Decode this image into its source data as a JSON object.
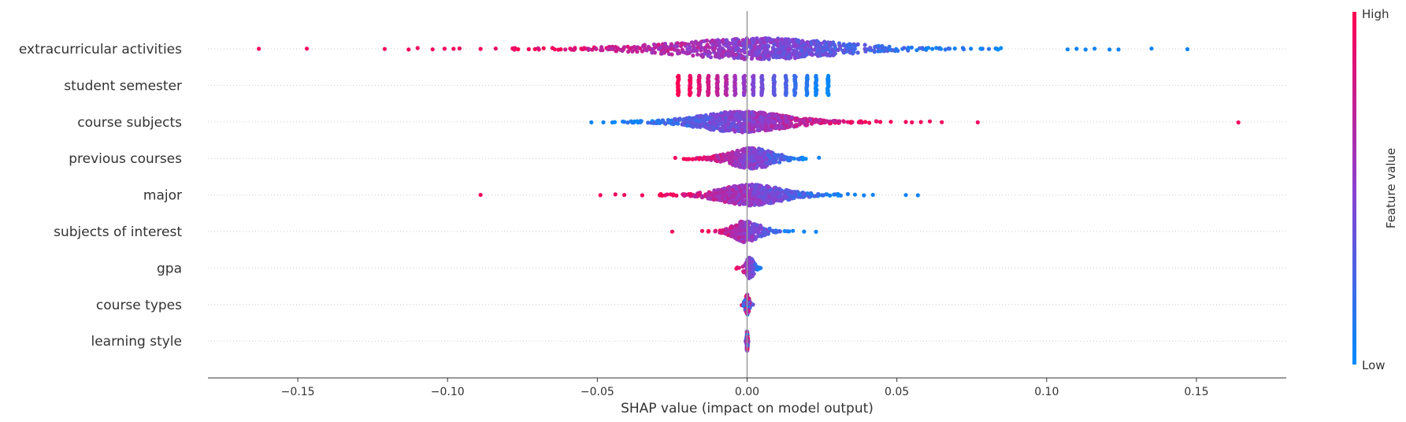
{
  "chart_data": {
    "type": "scatter",
    "subtype": "beeswarm",
    "title": "",
    "xlabel": "SHAP value (impact on model output)",
    "ylabel": "",
    "xlim": [
      -0.18,
      0.18
    ],
    "xticks": [
      -0.15,
      -0.1,
      -0.05,
      0.0,
      0.05,
      0.1,
      0.15
    ],
    "xtick_labels": [
      "−0.15",
      "−0.10",
      "−0.05",
      "0.00",
      "0.05",
      "0.10",
      "0.15"
    ],
    "zero_line": 0.0,
    "row_gridlines": "dotted",
    "colorbar": {
      "title": "Feature value",
      "high_label": "High",
      "low_label": "Low",
      "high_color": "#ff0051",
      "low_color": "#008bfb"
    },
    "features": [
      {
        "name": "extracurricular activities",
        "color_trend": "high-left",
        "outliers": [
          -0.163,
          -0.147,
          -0.121,
          -0.113,
          -0.11,
          -0.105,
          -0.101,
          -0.098,
          -0.096,
          -0.089,
          0.107,
          0.11,
          0.113,
          0.116,
          0.121,
          0.124,
          0.135,
          0.147
        ],
        "core_range": [
          -0.085,
          0.085
        ],
        "density_peak": 0.005
      },
      {
        "name": "student semester",
        "color_trend": "high-left",
        "clusters": [
          -0.023,
          -0.019,
          -0.016,
          -0.013,
          -0.01,
          -0.007,
          -0.004,
          -0.001,
          0.002,
          0.005,
          0.009,
          0.013,
          0.016,
          0.02,
          0.023,
          0.027
        ]
      },
      {
        "name": "course subjects",
        "color_trend": "high-right",
        "outliers": [
          -0.052,
          -0.048,
          -0.045,
          0.048,
          0.053,
          0.055,
          0.058,
          0.061,
          0.065,
          0.077,
          0.164
        ],
        "core_range": [
          -0.045,
          0.045
        ],
        "density_peak": -0.002
      },
      {
        "name": "previous courses",
        "color_trend": "high-left",
        "outliers": [
          -0.024,
          0.024
        ],
        "core_range": [
          -0.022,
          0.023
        ],
        "density_peak": 0.002
      },
      {
        "name": "major",
        "color_trend": "high-left",
        "outliers": [
          -0.089,
          -0.049,
          -0.044,
          -0.041,
          -0.035,
          0.036,
          0.039,
          0.042,
          0.053,
          0.057
        ],
        "core_range": [
          -0.03,
          0.034
        ],
        "density_peak": 0.001
      },
      {
        "name": "subjects of interest",
        "color_trend": "high-left",
        "outliers": [
          -0.025,
          -0.015,
          0.019,
          0.023
        ],
        "core_range": [
          -0.013,
          0.016
        ],
        "density_peak": -0.001
      },
      {
        "name": "gpa",
        "color_trend": "high-left",
        "core_range": [
          -0.004,
          0.005
        ],
        "density_peak": 0.001
      },
      {
        "name": "course types",
        "color_trend": "mixed",
        "core_range": [
          -0.002,
          0.002
        ],
        "density_peak": 0.0
      },
      {
        "name": "learning style",
        "color_trend": "mixed",
        "core_range": [
          -0.0005,
          0.0005
        ],
        "density_peak": 0.0
      }
    ]
  }
}
